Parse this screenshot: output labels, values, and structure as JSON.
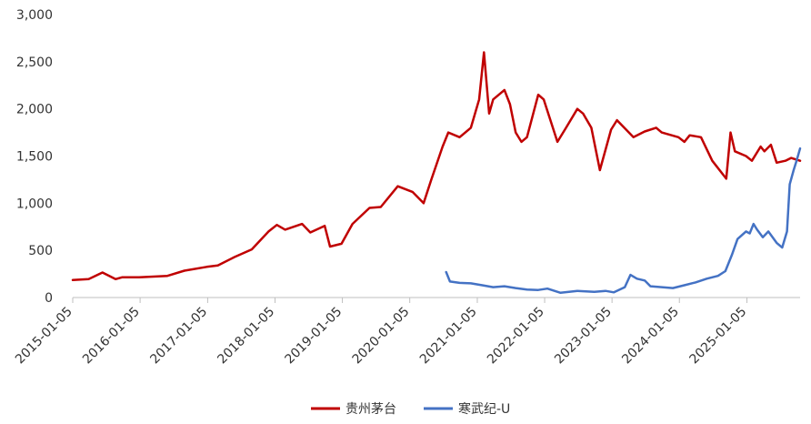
{
  "chart_data": {
    "type": "line",
    "title": "",
    "xlabel": "",
    "ylabel": "",
    "ylim": [
      0,
      3000
    ],
    "yticks": [
      0,
      500,
      1000,
      1500,
      2000,
      2500,
      3000
    ],
    "ytick_labels": [
      "0",
      "500",
      "1,000",
      "1,500",
      "2,000",
      "2,500",
      "3,000"
    ],
    "xlim": [
      "2015-01-05",
      "2025-10-20"
    ],
    "xtick_labels": [
      "2015-01-05",
      "2016-01-05",
      "2017-01-05",
      "2018-01-05",
      "2019-01-05",
      "2020-01-05",
      "2021-01-05",
      "2022-01-05",
      "2023-01-05",
      "2024-01-05",
      "2025-01-05"
    ],
    "grid": false,
    "legend_position": "bottom",
    "series": [
      {
        "name": "贵州茅台",
        "color": "#C00000",
        "points": [
          [
            "2015-01-05",
            185
          ],
          [
            "2015-04-01",
            195
          ],
          [
            "2015-06-15",
            265
          ],
          [
            "2015-08-25",
            195
          ],
          [
            "2015-10-01",
            215
          ],
          [
            "2015-12-31",
            215
          ],
          [
            "2016-06-01",
            230
          ],
          [
            "2016-09-01",
            285
          ],
          [
            "2016-12-31",
            325
          ],
          [
            "2017-03-01",
            340
          ],
          [
            "2017-06-01",
            430
          ],
          [
            "2017-09-01",
            510
          ],
          [
            "2017-12-01",
            700
          ],
          [
            "2018-01-15",
            770
          ],
          [
            "2018-03-01",
            720
          ],
          [
            "2018-06-01",
            780
          ],
          [
            "2018-07-15",
            690
          ],
          [
            "2018-10-01",
            760
          ],
          [
            "2018-10-30",
            540
          ],
          [
            "2018-12-31",
            570
          ],
          [
            "2019-03-01",
            780
          ],
          [
            "2019-06-01",
            950
          ],
          [
            "2019-08-01",
            960
          ],
          [
            "2019-11-01",
            1180
          ],
          [
            "2020-01-20",
            1120
          ],
          [
            "2020-03-20",
            1000
          ],
          [
            "2020-05-01",
            1250
          ],
          [
            "2020-07-01",
            1600
          ],
          [
            "2020-08-01",
            1750
          ],
          [
            "2020-10-01",
            1700
          ],
          [
            "2020-12-01",
            1800
          ],
          [
            "2021-01-15",
            2100
          ],
          [
            "2021-02-10",
            2600
          ],
          [
            "2021-03-10",
            1950
          ],
          [
            "2021-04-01",
            2100
          ],
          [
            "2021-06-01",
            2200
          ],
          [
            "2021-07-01",
            2050
          ],
          [
            "2021-08-01",
            1750
          ],
          [
            "2021-09-01",
            1650
          ],
          [
            "2021-10-01",
            1700
          ],
          [
            "2021-12-01",
            2150
          ],
          [
            "2021-12-31",
            2100
          ],
          [
            "2022-03-15",
            1650
          ],
          [
            "2022-05-01",
            1800
          ],
          [
            "2022-07-01",
            2000
          ],
          [
            "2022-08-01",
            1950
          ],
          [
            "2022-09-15",
            1800
          ],
          [
            "2022-10-31",
            1350
          ],
          [
            "2022-12-31",
            1780
          ],
          [
            "2023-02-01",
            1880
          ],
          [
            "2023-05-01",
            1700
          ],
          [
            "2023-07-01",
            1760
          ],
          [
            "2023-09-01",
            1800
          ],
          [
            "2023-10-01",
            1750
          ],
          [
            "2023-12-31",
            1700
          ],
          [
            "2024-02-01",
            1650
          ],
          [
            "2024-03-01",
            1720
          ],
          [
            "2024-05-01",
            1700
          ],
          [
            "2024-07-01",
            1450
          ],
          [
            "2024-09-15",
            1260
          ],
          [
            "2024-10-08",
            1750
          ],
          [
            "2024-11-01",
            1550
          ],
          [
            "2024-12-31",
            1500
          ],
          [
            "2025-02-01",
            1450
          ],
          [
            "2025-03-20",
            1600
          ],
          [
            "2025-04-10",
            1550
          ],
          [
            "2025-05-15",
            1620
          ],
          [
            "2025-06-15",
            1430
          ],
          [
            "2025-08-01",
            1450
          ],
          [
            "2025-09-01",
            1480
          ],
          [
            "2025-10-20",
            1450
          ]
        ]
      },
      {
        "name": "寒武纪-U",
        "color": "#4472C4",
        "points": [
          [
            "2020-07-20",
            270
          ],
          [
            "2020-08-10",
            170
          ],
          [
            "2020-10-01",
            155
          ],
          [
            "2020-12-01",
            150
          ],
          [
            "2021-02-01",
            130
          ],
          [
            "2021-04-01",
            110
          ],
          [
            "2021-06-01",
            120
          ],
          [
            "2021-08-01",
            100
          ],
          [
            "2021-10-01",
            85
          ],
          [
            "2021-12-01",
            80
          ],
          [
            "2022-01-20",
            95
          ],
          [
            "2022-04-01",
            50
          ],
          [
            "2022-07-01",
            70
          ],
          [
            "2022-10-01",
            60
          ],
          [
            "2022-12-01",
            70
          ],
          [
            "2023-01-15",
            55
          ],
          [
            "2023-03-15",
            110
          ],
          [
            "2023-04-15",
            240
          ],
          [
            "2023-05-20",
            200
          ],
          [
            "2023-07-01",
            180
          ],
          [
            "2023-08-01",
            120
          ],
          [
            "2023-10-01",
            110
          ],
          [
            "2023-12-01",
            100
          ],
          [
            "2024-02-01",
            130
          ],
          [
            "2024-04-01",
            160
          ],
          [
            "2024-06-01",
            200
          ],
          [
            "2024-08-01",
            230
          ],
          [
            "2024-09-10",
            280
          ],
          [
            "2024-10-15",
            450
          ],
          [
            "2024-11-15",
            620
          ],
          [
            "2024-12-31",
            700
          ],
          [
            "2025-01-20",
            680
          ],
          [
            "2025-02-10",
            780
          ],
          [
            "2025-03-01",
            720
          ],
          [
            "2025-04-01",
            640
          ],
          [
            "2025-05-01",
            700
          ],
          [
            "2025-06-15",
            580
          ],
          [
            "2025-07-15",
            530
          ],
          [
            "2025-08-10",
            700
          ],
          [
            "2025-08-25",
            1200
          ],
          [
            "2025-09-15",
            1350
          ],
          [
            "2025-10-01",
            1450
          ],
          [
            "2025-10-20",
            1580
          ]
        ]
      }
    ]
  }
}
